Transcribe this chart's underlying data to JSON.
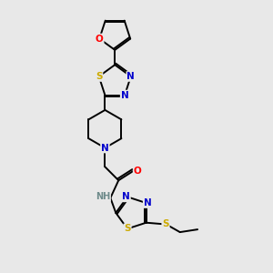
{
  "background_color": "#e8e8e8",
  "bond_color": "#000000",
  "atom_colors": {
    "N": "#0000cc",
    "O": "#ff0000",
    "S": "#ccaa00",
    "C": "#000000",
    "H": "#6e8b8b"
  },
  "figsize": [
    3.0,
    3.0
  ],
  "dpi": 100,
  "lw": 1.4,
  "fontsize": 7.5
}
